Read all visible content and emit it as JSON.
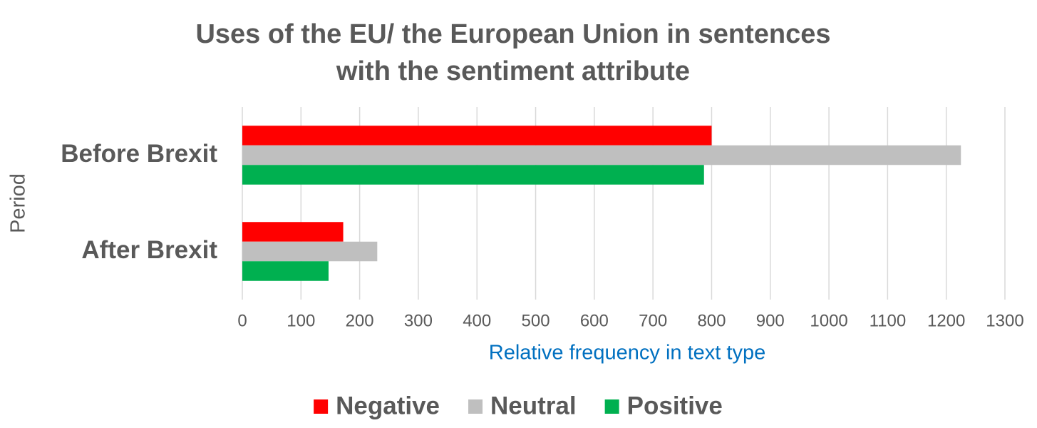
{
  "chart_data": {
    "type": "hbar",
    "title": "Uses of the EU/ the European Union in sentences with the sentiment attribute",
    "categories": [
      "Before Brexit",
      "After Brexit"
    ],
    "series": [
      {
        "name": "Negative",
        "color": "#ff0000",
        "values": [
          800,
          172
        ]
      },
      {
        "name": "Neutral",
        "color": "#bfbfbf",
        "values": [
          1225,
          230
        ]
      },
      {
        "name": "Positive",
        "color": "#00b050",
        "values": [
          787,
          147
        ]
      }
    ],
    "x_label": "Relative frequency in text type",
    "y_label": "Period",
    "xlim": [
      0,
      1300
    ],
    "xticks": [
      0,
      100,
      200,
      300,
      400,
      500,
      600,
      700,
      800,
      900,
      1000,
      1100,
      1200,
      1300
    ],
    "grid": true,
    "legend": "bottom"
  }
}
